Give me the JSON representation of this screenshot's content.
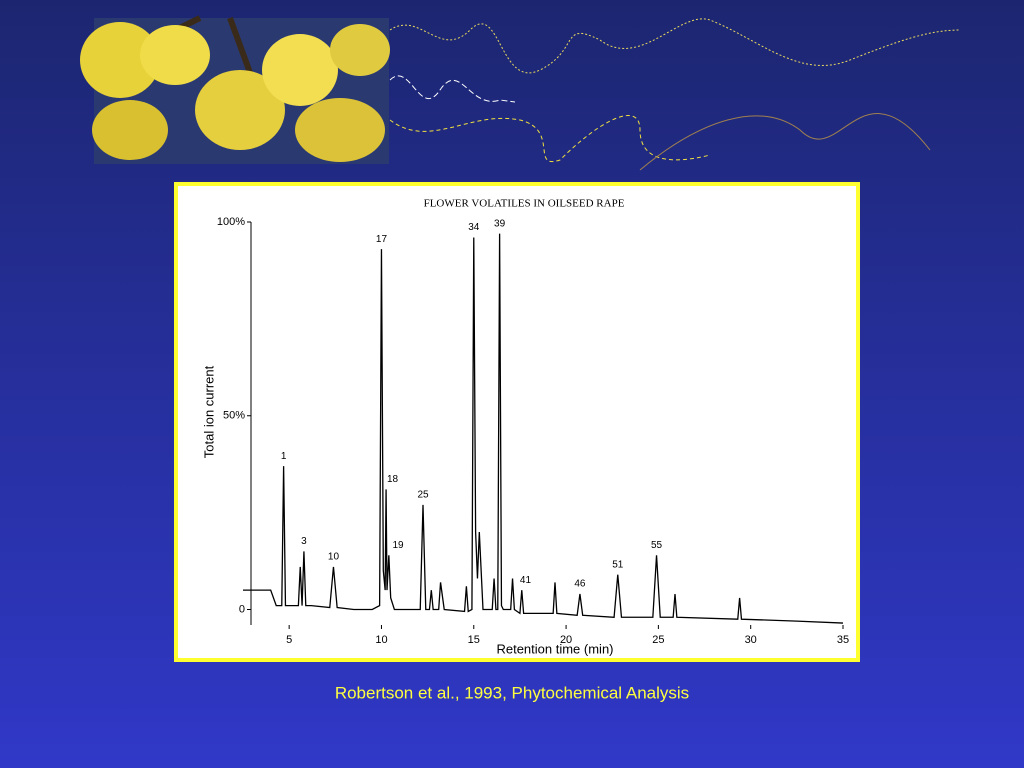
{
  "chart_data": {
    "type": "line",
    "title": "FLOWER VOLATILES IN OILSEED RAPE",
    "xlabel": "Retention time  (min)",
    "ylabel": "Total ion current",
    "xlim": [
      2.5,
      35
    ],
    "ylim": [
      -4,
      100
    ],
    "xticks": [
      5,
      10,
      15,
      20,
      25,
      30,
      35
    ],
    "yticks": [
      {
        "value": 0,
        "label": "0"
      },
      {
        "value": 50,
        "label": "50%"
      },
      {
        "value": 100,
        "label": "100%"
      }
    ],
    "series": [
      {
        "color": "#000000",
        "x": [
          2.5,
          4.0,
          4.3,
          4.5,
          4.6,
          4.7,
          4.8,
          5.0,
          5.5,
          5.6,
          5.7,
          5.8,
          5.9,
          6.2,
          7.2,
          7.4,
          7.6,
          8.5,
          9.5,
          9.9,
          10.0,
          10.1,
          10.2,
          10.25,
          10.3,
          10.4,
          10.5,
          10.7,
          11.5,
          12.1,
          12.25,
          12.4,
          12.6,
          12.7,
          12.8,
          13.1,
          13.2,
          13.4,
          14.5,
          14.6,
          14.7,
          14.9,
          15.0,
          15.1,
          15.2,
          15.3,
          15.5,
          16.0,
          16.1,
          16.2,
          16.3,
          16.4,
          16.5,
          16.6,
          17.0,
          17.1,
          17.2,
          17.5,
          17.6,
          17.7,
          19.0,
          19.3,
          19.4,
          19.5,
          20.6,
          20.75,
          20.9,
          22.6,
          22.8,
          23.0,
          24.7,
          24.9,
          25.1,
          25.8,
          25.9,
          26.0,
          29.3,
          29.4,
          29.5,
          32.5,
          35
        ],
        "values": [
          5,
          5,
          1,
          1,
          1,
          37,
          1,
          1,
          1,
          11,
          1,
          15,
          1,
          1,
          0.5,
          11,
          0.5,
          0,
          0,
          1,
          93,
          10,
          5,
          31,
          5,
          14,
          3,
          0,
          0,
          0,
          27,
          0,
          0,
          5,
          0,
          0,
          7,
          0,
          -0.5,
          6,
          -0.5,
          0,
          96,
          20,
          8,
          20,
          0,
          0,
          8,
          0,
          0,
          97,
          1,
          0,
          0,
          8,
          0,
          -1,
          5,
          -1,
          -1,
          -1,
          7,
          -1,
          -1.5,
          4,
          -1.5,
          -2,
          9,
          -2,
          -2,
          14,
          -2,
          -2,
          4,
          -2,
          -2.5,
          3,
          -2.5,
          -3,
          -3.5
        ]
      }
    ],
    "peak_labels": [
      {
        "text": "1",
        "x": 4.7,
        "y": 37
      },
      {
        "text": "3",
        "x": 5.8,
        "y": 15
      },
      {
        "text": "10",
        "x": 7.4,
        "y": 11
      },
      {
        "text": "17",
        "x": 10.0,
        "y": 93
      },
      {
        "text": "18",
        "x": 10.6,
        "y": 31
      },
      {
        "text": "19",
        "x": 10.9,
        "y": 14
      },
      {
        "text": "25",
        "x": 12.25,
        "y": 27
      },
      {
        "text": "34",
        "x": 15.0,
        "y": 96
      },
      {
        "text": "39",
        "x": 16.4,
        "y": 97
      },
      {
        "text": "41",
        "x": 17.8,
        "y": 5
      },
      {
        "text": "46",
        "x": 20.75,
        "y": 4
      },
      {
        "text": "51",
        "x": 22.8,
        "y": 9
      },
      {
        "text": "55",
        "x": 24.9,
        "y": 14
      }
    ]
  },
  "caption": "Robertson et al., 1993, Phytochemical Analysis"
}
